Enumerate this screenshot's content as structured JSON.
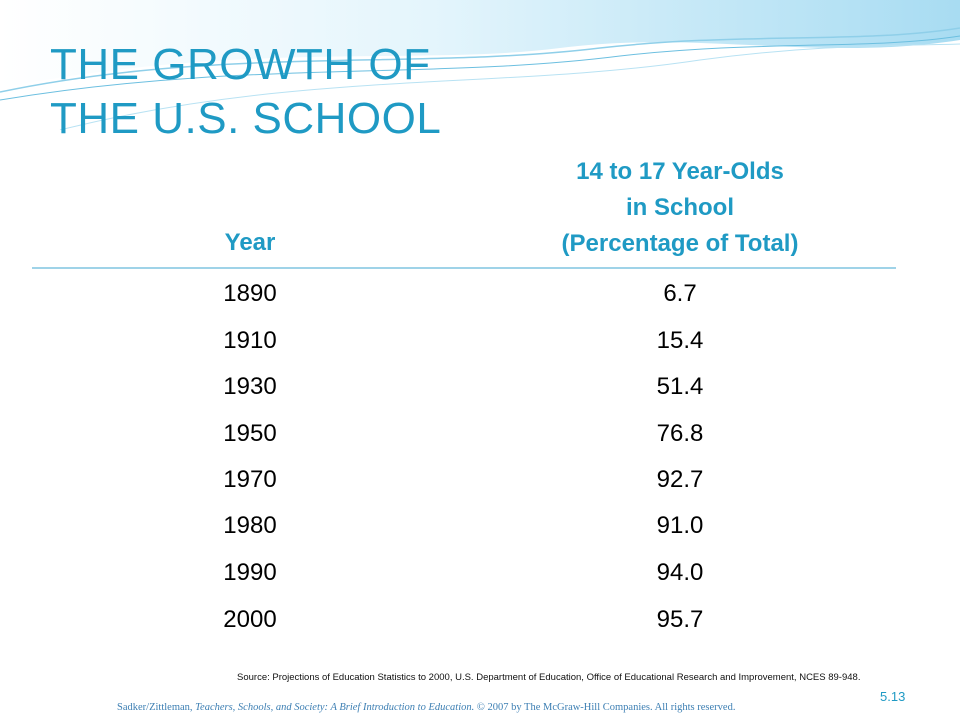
{
  "title": {
    "line1": "THE GROWTH OF",
    "line2": "THE U.S. SCHOOL"
  },
  "table": {
    "header_year": "Year",
    "header_pct": [
      "14 to 17 Year-Olds",
      "in School",
      "(Percentage of Total)"
    ],
    "rows": [
      {
        "year": "1890",
        "pct": "6.7"
      },
      {
        "year": "1910",
        "pct": "15.4"
      },
      {
        "year": "1930",
        "pct": "51.4"
      },
      {
        "year": "1950",
        "pct": "76.8"
      },
      {
        "year": "1970",
        "pct": "92.7"
      },
      {
        "year": "1980",
        "pct": "91.0"
      },
      {
        "year": "1990",
        "pct": "94.0"
      },
      {
        "year": "2000",
        "pct": "95.7"
      }
    ]
  },
  "source": "Source: Projections of Education Statistics to 2000, U.S. Department of Education, Office of Educational Research and Improvement, NCES 89-948.",
  "slide_number": "5.13",
  "footer": {
    "authors": "Sadker/Zittleman, ",
    "book": "Teachers, Schools, and Society: A Brief Introduction to Education.",
    "rights": " © 2007 by The McGraw-Hill Companies.  All rights reserved."
  },
  "colors": {
    "accent": "#1f9ac4",
    "wave_light": "#d6f0fa",
    "wave_mid": "#9fd6ee",
    "rule": "#9fd3e8"
  }
}
